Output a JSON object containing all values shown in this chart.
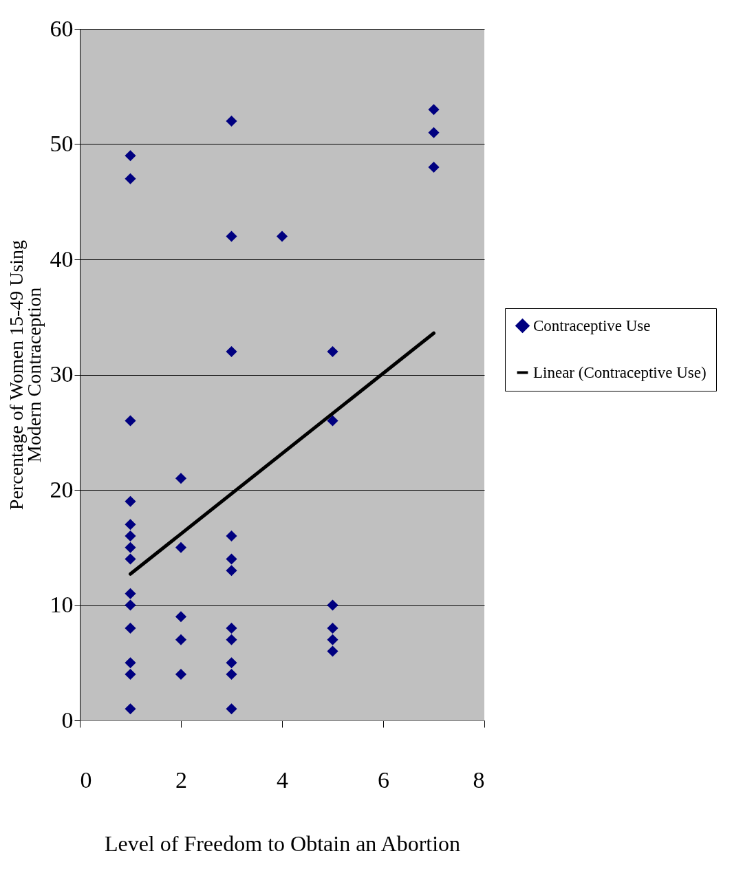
{
  "chart_data": {
    "type": "scatter",
    "xlabel": "Level of Freedom to Obtain an Abortion",
    "ylabel": "Percentage of Women 15-49 Using\nModern Contraception",
    "xlim": [
      0,
      8
    ],
    "xticks": [
      0,
      2,
      4,
      6,
      8
    ],
    "ylim": [
      0,
      60
    ],
    "yticks": [
      0,
      10,
      20,
      30,
      40,
      50,
      60
    ],
    "grid": "y",
    "legend": "right",
    "series": [
      {
        "name": "Contraceptive Use",
        "marker": "diamond",
        "color": "#000080",
        "x": [
          1,
          1,
          1,
          1,
          1,
          1,
          1,
          1,
          1,
          1,
          1,
          1,
          1,
          1,
          2,
          2,
          2,
          2,
          2,
          3,
          3,
          3,
          3,
          3,
          3,
          3,
          3,
          3,
          3,
          3,
          4,
          5,
          5,
          5,
          5,
          5,
          5,
          7,
          7,
          7
        ],
        "values": [
          49,
          47,
          26,
          19,
          17,
          16,
          15,
          14,
          11,
          10,
          8,
          5,
          4,
          1,
          21,
          15,
          9,
          7,
          4,
          52,
          42,
          32,
          16,
          14,
          13,
          8,
          7,
          5,
          4,
          1,
          42,
          32,
          26,
          10,
          8,
          7,
          6,
          53,
          51,
          48
        ]
      },
      {
        "name": "Linear (Contraceptive Use)",
        "type": "line",
        "marker": "none",
        "color": "#000000",
        "x": [
          1,
          7
        ],
        "values": [
          12.7,
          33.6
        ]
      }
    ]
  }
}
